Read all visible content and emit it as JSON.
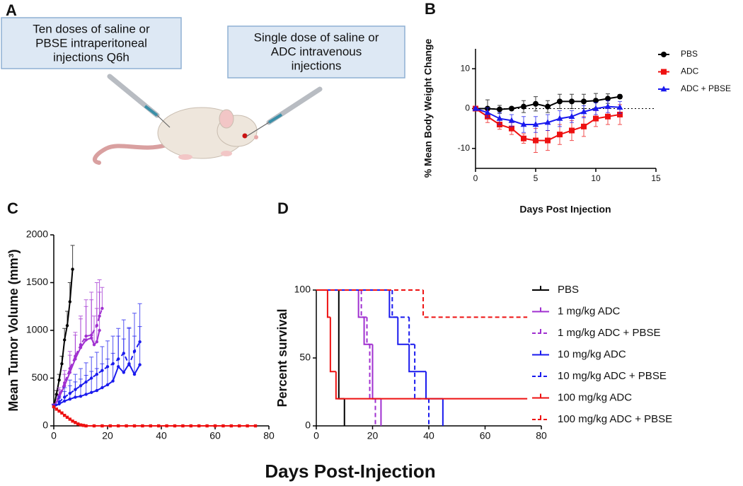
{
  "panel_a": {
    "label": "A",
    "boxes": [
      {
        "lines": [
          "Ten doses of saline or",
          "PBSE intraperitoneal",
          "injections Q6h"
        ]
      },
      {
        "lines": [
          "Single dose of saline or",
          "ADC intravenous",
          "injections"
        ]
      }
    ]
  },
  "shared_xlabel": "Days Post-Injection",
  "chart_data": [
    {
      "type": "line",
      "panel_label": "B",
      "ylabel": "% Mean Body Weight Change",
      "xlabel": "Days Post Injection",
      "xlim": [
        0,
        15
      ],
      "ylim": [
        -15,
        15
      ],
      "xticks": [
        0,
        5,
        10,
        15
      ],
      "yticks": [
        -10,
        0,
        10
      ],
      "reference_line": 0,
      "legend": "upper right",
      "error_direction": "both",
      "series": [
        {
          "name": "PBS",
          "color": "#000000",
          "marker": "circle",
          "x": [
            0,
            1,
            2,
            3,
            4,
            5,
            6,
            7,
            8,
            9,
            10,
            11,
            12
          ],
          "values": [
            0,
            0,
            -0.2,
            0,
            0.5,
            1.2,
            0.5,
            1.8,
            1.8,
            1.8,
            2,
            2.5,
            3
          ],
          "errors": [
            0.3,
            2.2,
            1,
            0.3,
            1.5,
            1.8,
            1.5,
            1.8,
            1.8,
            1.8,
            1.8,
            1.2,
            0.5
          ]
        },
        {
          "name": "ADC",
          "color": "#ee1111",
          "marker": "square",
          "x": [
            0,
            1,
            2,
            3,
            4,
            5,
            6,
            7,
            8,
            9,
            10,
            11,
            12
          ],
          "values": [
            0,
            -2,
            -4,
            -5,
            -7.5,
            -8,
            -8,
            -6.5,
            -5.5,
            -4.5,
            -2.5,
            -2,
            -1.5
          ],
          "errors": [
            0.3,
            1.5,
            1.2,
            1.5,
            1.2,
            3,
            2.5,
            2.5,
            2.5,
            2.5,
            2,
            2,
            2.5
          ]
        },
        {
          "name": "ADC + PBSE",
          "color": "#1a1aee",
          "marker": "triangle",
          "x": [
            0,
            1,
            2,
            3,
            4,
            5,
            6,
            7,
            8,
            9,
            10,
            11,
            12
          ],
          "values": [
            0,
            -1,
            -2.5,
            -3,
            -4,
            -4,
            -3.5,
            -2.5,
            -2,
            -0.8,
            0,
            0.5,
            0.3
          ],
          "errors": [
            0.3,
            1.2,
            1.5,
            1.5,
            2,
            2,
            2,
            2,
            1.5,
            1.5,
            1.5,
            1.5,
            1.5
          ]
        }
      ]
    },
    {
      "type": "line",
      "panel_label": "C",
      "ylabel": "Mean Tumor Volume (mm³)",
      "xlim": [
        0,
        80
      ],
      "ylim": [
        0,
        2000
      ],
      "xticks": [
        0,
        20,
        40,
        60,
        80
      ],
      "yticks": [
        0,
        500,
        1000,
        1500,
        2000
      ],
      "error_direction": "up",
      "series": [
        {
          "color": "#000000",
          "marker": "circle",
          "x": [
            0,
            1,
            2,
            3,
            4,
            5,
            6,
            7
          ],
          "values": [
            200,
            330,
            480,
            650,
            900,
            1050,
            1300,
            1640
          ],
          "errors": [
            20,
            40,
            60,
            80,
            120,
            150,
            200,
            250
          ]
        },
        {
          "color": "#a030d0",
          "marker": "circle",
          "x": [
            0,
            2,
            4,
            6,
            8,
            10,
            12,
            14,
            15,
            16,
            17
          ],
          "values": [
            200,
            300,
            420,
            560,
            700,
            820,
            900,
            920,
            850,
            880,
            1000
          ],
          "errors": [
            30,
            80,
            120,
            180,
            250,
            300,
            350,
            400,
            300,
            350,
            400
          ]
        },
        {
          "color": "#a030d0",
          "marker": "circle",
          "dash": true,
          "x": [
            0,
            2,
            4,
            6,
            8,
            10,
            12,
            14,
            16,
            17,
            18
          ],
          "values": [
            200,
            320,
            450,
            600,
            730,
            850,
            940,
            950,
            1050,
            1150,
            1230
          ],
          "errors": [
            30,
            80,
            130,
            180,
            250,
            300,
            380,
            450,
            450,
            380,
            220
          ]
        },
        {
          "color": "#1a1aee",
          "marker": "circle",
          "x": [
            0,
            2,
            4,
            6,
            8,
            10,
            12,
            14,
            16,
            18,
            20,
            22,
            24,
            26,
            28,
            30,
            32
          ],
          "values": [
            200,
            230,
            260,
            280,
            300,
            310,
            330,
            350,
            370,
            400,
            430,
            470,
            620,
            560,
            650,
            540,
            640
          ],
          "errors": [
            20,
            60,
            100,
            140,
            160,
            180,
            200,
            220,
            230,
            250,
            270,
            290,
            320,
            350,
            380,
            400,
            400
          ]
        },
        {
          "color": "#1a1aee",
          "marker": "circle",
          "dash": true,
          "x": [
            0,
            2,
            4,
            6,
            8,
            10,
            12,
            14,
            16,
            18,
            20,
            22,
            24,
            26,
            28,
            30,
            32
          ],
          "values": [
            200,
            250,
            300,
            340,
            380,
            420,
            460,
            500,
            540,
            580,
            620,
            650,
            700,
            760,
            640,
            780,
            880
          ],
          "errors": [
            20,
            60,
            100,
            140,
            160,
            180,
            200,
            220,
            230,
            250,
            270,
            290,
            320,
            350,
            380,
            400,
            400
          ]
        },
        {
          "color": "#ee1111",
          "marker": "square",
          "x": [
            0,
            1,
            2,
            3,
            4,
            5,
            6,
            7,
            8,
            9,
            10,
            11,
            12,
            15,
            18,
            21,
            24,
            27,
            30,
            33,
            36,
            39,
            42,
            45,
            48,
            51,
            54,
            57,
            60,
            63,
            66,
            69,
            72,
            75
          ],
          "values": [
            200,
            175,
            155,
            135,
            110,
            90,
            70,
            50,
            35,
            20,
            10,
            5,
            0,
            0,
            0,
            0,
            0,
            0,
            0,
            0,
            0,
            0,
            0,
            0,
            0,
            0,
            0,
            0,
            0,
            0,
            0,
            0,
            0,
            0
          ]
        }
      ]
    },
    {
      "type": "step",
      "panel_label": "D",
      "ylabel": "Percent survival",
      "xlim": [
        0,
        80
      ],
      "ylim": [
        0,
        100
      ],
      "xticks": [
        0,
        20,
        40,
        60,
        80
      ],
      "yticks": [
        0,
        50,
        100
      ],
      "legend": "right",
      "series": [
        {
          "name": "PBS",
          "color": "#000000",
          "x": [
            0,
            8,
            10
          ],
          "values": [
            100,
            20,
            0
          ]
        },
        {
          "name": "1 mg/kg ADC",
          "color": "#a030d0",
          "x": [
            0,
            15,
            17,
            20,
            23
          ],
          "values": [
            100,
            80,
            60,
            20,
            0
          ]
        },
        {
          "name": "1 mg/kg ADC + PBSE",
          "color": "#a030d0",
          "dash": true,
          "x": [
            0,
            16,
            18,
            19,
            21
          ],
          "values": [
            100,
            80,
            60,
            20,
            0
          ]
        },
        {
          "name": "10 mg/kg ADC",
          "color": "#1a1aee",
          "x": [
            0,
            26,
            29,
            33,
            39,
            45
          ],
          "values": [
            100,
            80,
            60,
            40,
            20,
            0
          ]
        },
        {
          "name": "10 mg/kg ADC + PBSE",
          "color": "#1a1aee",
          "dash": true,
          "x": [
            0,
            27,
            33,
            35,
            40
          ],
          "values": [
            100,
            80,
            60,
            20,
            0
          ]
        },
        {
          "name": "100 mg/kg ADC",
          "color": "#ee1111",
          "x": [
            0,
            4,
            5,
            7,
            75
          ],
          "values": [
            100,
            80,
            40,
            20,
            20
          ]
        },
        {
          "name": "100 mg/kg ADC + PBSE",
          "color": "#ee1111",
          "dash": true,
          "x": [
            0,
            38,
            75
          ],
          "values": [
            100,
            80,
            80
          ]
        }
      ]
    }
  ]
}
